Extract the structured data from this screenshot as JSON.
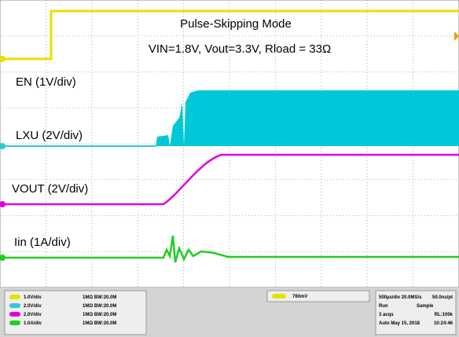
{
  "screen": {
    "title": "Pulse-Skipping Mode",
    "subtitle": "VIN=1.8V, Vout=3.3V, Rload = 33Ω",
    "traces": [
      {
        "label": "EN (1V/div)"
      },
      {
        "label": "LXU (2V/div)"
      },
      {
        "label": "VOUT (2V/div)"
      },
      {
        "label": "Iin (1A/div)"
      }
    ],
    "channels": [
      {
        "scale": "1.0V/div",
        "coupling": "1MΩ BW:20.0M"
      },
      {
        "scale": "2.0V/div",
        "coupling": "1MΩ BW:20.0M"
      },
      {
        "scale": "2.0V/div",
        "coupling": "1MΩ BW:20.0M"
      },
      {
        "scale": "1.0A/div",
        "coupling": "1MΩ BW:20.0M"
      }
    ],
    "trigger": "760mV",
    "timebase": "500µs/div  20.0MS/s",
    "resolution": "50.0ns/pt",
    "run": "Run",
    "mode": "Sample",
    "acqs": "3 acqs",
    "record": "RL:100k",
    "date": "Auto  May 15, 2018",
    "time": "10:24:46"
  }
}
